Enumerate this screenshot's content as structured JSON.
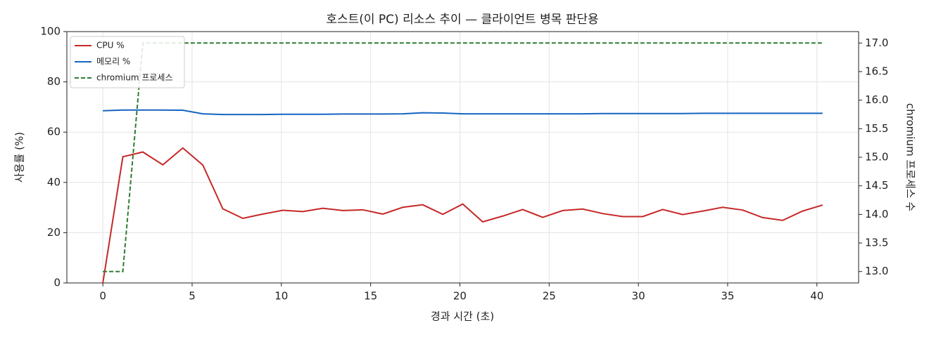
{
  "chart_data": {
    "type": "line",
    "title": "호스트(이 PC) 리소스 추이 — 클라이언트 병목 판단용",
    "x_label": "경과 시간 (초)",
    "y_label": "사용률 (%)",
    "y2_label": "chromium 프로세스 수",
    "x": [
      0,
      1.12,
      2.24,
      3.36,
      4.48,
      5.6,
      6.72,
      7.84,
      8.96,
      10.08,
      11.2,
      12.32,
      13.44,
      14.56,
      15.68,
      16.8,
      17.92,
      19.04,
      20.16,
      21.28,
      22.4,
      23.52,
      24.64,
      25.76,
      26.88,
      28,
      29.12,
      30.24,
      31.36,
      32.48,
      33.6,
      34.72,
      35.84,
      36.96,
      38.08,
      39.2,
      40.32
    ],
    "series": [
      {
        "name": "CPU %",
        "color": "#c62828",
        "dash": false,
        "values": [
          0,
          50.2,
          52.1,
          47,
          53.7,
          46.9,
          29.5,
          25.7,
          27.4,
          28.9,
          28.4,
          29.7,
          28.8,
          29.1,
          27.4,
          30.1,
          31.1,
          27.3,
          31.4,
          24.3,
          26.6,
          29.2,
          26.1,
          28.8,
          29.4,
          27.6,
          26.4,
          26.4,
          29.2,
          27.2,
          28.6,
          30.1,
          29,
          26,
          24.9,
          28.6,
          31
        ]
      },
      {
        "name": "메모리 %",
        "color": "#1565c0",
        "dash": false,
        "values": [
          68.5,
          68.8,
          68.8,
          68.8,
          68.7,
          67.3,
          67,
          67,
          67,
          67.1,
          67.1,
          67.1,
          67.2,
          67.2,
          67.2,
          67.3,
          67.7,
          67.6,
          67.3,
          67.3,
          67.3,
          67.3,
          67.3,
          67.3,
          67.3,
          67.4,
          67.4,
          67.4,
          67.4,
          67.4,
          67.5,
          67.5,
          67.5,
          67.5,
          67.5,
          67.5,
          67.5
        ]
      },
      {
        "name": "chromium 프로세스",
        "color": "#2e7d32",
        "dash": true,
        "axis": "y2",
        "values": [
          13,
          13,
          17,
          17,
          17,
          17,
          17,
          17,
          17,
          17,
          17,
          17,
          17,
          17,
          17,
          17,
          17,
          17,
          17,
          17,
          17,
          17,
          17,
          17,
          17,
          17,
          17,
          17,
          17,
          17,
          17,
          17,
          17,
          17,
          17,
          17,
          17
        ]
      }
    ],
    "xlim": [
      -2.016,
      42.336
    ],
    "xticks": [
      0,
      5,
      10,
      15,
      20,
      25,
      30,
      35,
      40
    ],
    "ylim": [
      0,
      100
    ],
    "yticks": [
      0,
      20,
      40,
      60,
      80,
      100
    ],
    "y2lim": [
      12.8,
      17.2
    ],
    "y2ticks": [
      {
        "value": 13,
        "label": "13.0"
      },
      13.5,
      {
        "value": 14,
        "label": "14.0"
      },
      14.5,
      {
        "value": 15,
        "label": "15.0"
      },
      15.5,
      {
        "value": 16,
        "label": "16.0"
      },
      16.5,
      {
        "value": 17,
        "label": "17.0"
      }
    ],
    "grid": true,
    "legend": "upper left"
  }
}
